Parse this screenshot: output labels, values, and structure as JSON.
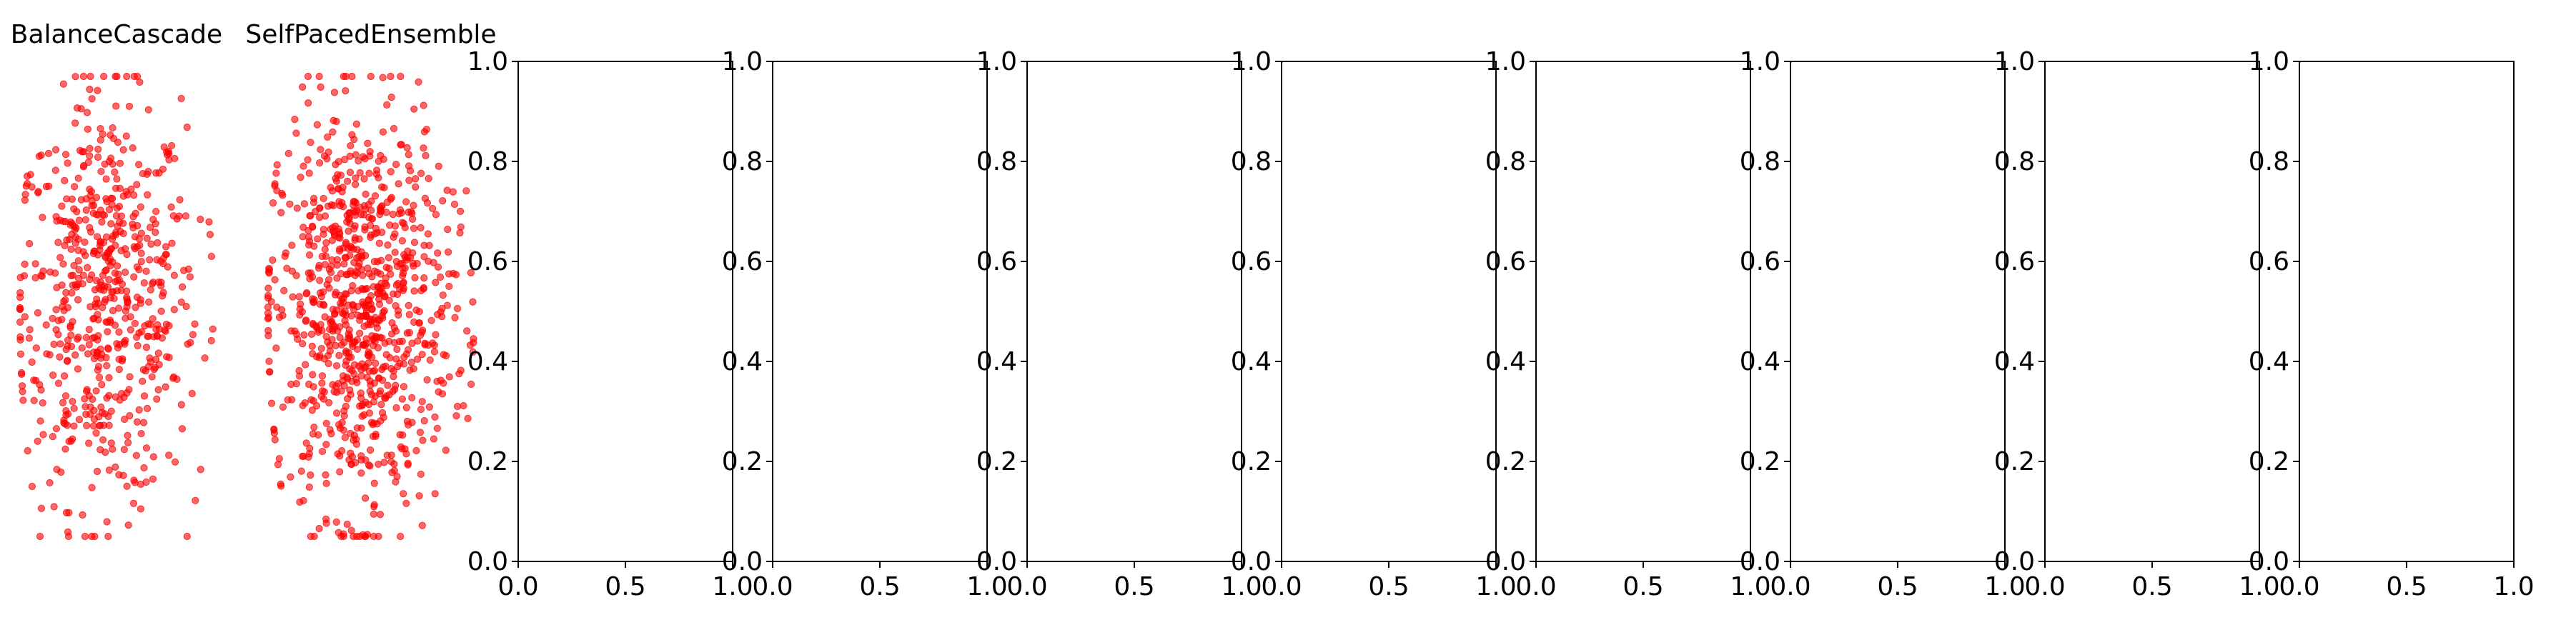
{
  "figure": {
    "background": "#ffffff",
    "point_color": "#ff0000"
  },
  "chart_data": [
    {
      "type": "scatter",
      "title": "BalanceCascade",
      "axes_visible": false,
      "grid": false,
      "color": "#ff0000",
      "cluster": {
        "count": 620,
        "x_range": [
          0.05,
          0.95
        ],
        "y_range": [
          0.05,
          0.97
        ],
        "center_x": 0.45,
        "center_y": 0.52
      }
    },
    {
      "type": "scatter",
      "title": "SelfPacedEnsemble",
      "axes_visible": false,
      "grid": false,
      "color": "#ff0000",
      "cluster": {
        "count": 900,
        "x_range": [
          0.02,
          0.98
        ],
        "y_range": [
          0.05,
          0.97
        ],
        "center_x": 0.45,
        "center_y": 0.5
      }
    },
    {
      "type": "scatter",
      "title": "",
      "xlim": [
        0.0,
        1.0
      ],
      "ylim": [
        0.0,
        1.0
      ],
      "xticks": [
        "0.0",
        "0.5",
        "1.0"
      ],
      "yticks": [
        "0.0",
        "0.2",
        "0.4",
        "0.6",
        "0.8",
        "1.0"
      ],
      "grid": false
    },
    {
      "type": "scatter",
      "title": "",
      "xlim": [
        0.0,
        1.0
      ],
      "ylim": [
        0.0,
        1.0
      ],
      "xticks": [
        "0.0",
        "0.5",
        "1.0"
      ],
      "yticks": [
        "0.0",
        "0.2",
        "0.4",
        "0.6",
        "0.8",
        "1.0"
      ],
      "grid": false
    },
    {
      "type": "scatter",
      "title": "",
      "xlim": [
        0.0,
        1.0
      ],
      "ylim": [
        0.0,
        1.0
      ],
      "xticks": [
        "0.0",
        "0.5",
        "1.0"
      ],
      "yticks": [
        "0.0",
        "0.2",
        "0.4",
        "0.6",
        "0.8",
        "1.0"
      ],
      "grid": false
    },
    {
      "type": "scatter",
      "title": "",
      "xlim": [
        0.0,
        1.0
      ],
      "ylim": [
        0.0,
        1.0
      ],
      "xticks": [
        "0.0",
        "0.5",
        "1.0"
      ],
      "yticks": [
        "0.0",
        "0.2",
        "0.4",
        "0.6",
        "0.8",
        "1.0"
      ],
      "grid": false
    },
    {
      "type": "scatter",
      "title": "",
      "xlim": [
        0.0,
        1.0
      ],
      "ylim": [
        0.0,
        1.0
      ],
      "xticks": [
        "0.0",
        "0.5",
        "1.0"
      ],
      "yticks": [
        "0.0",
        "0.2",
        "0.4",
        "0.6",
        "0.8",
        "1.0"
      ],
      "grid": false
    },
    {
      "type": "scatter",
      "title": "",
      "xlim": [
        0.0,
        1.0
      ],
      "ylim": [
        0.0,
        1.0
      ],
      "xticks": [
        "0.0",
        "0.5",
        "1.0"
      ],
      "yticks": [
        "0.0",
        "0.2",
        "0.4",
        "0.6",
        "0.8",
        "1.0"
      ],
      "grid": false
    },
    {
      "type": "scatter",
      "title": "",
      "xlim": [
        0.0,
        1.0
      ],
      "ylim": [
        0.0,
        1.0
      ],
      "xticks": [
        "0.0",
        "0.5",
        "1.0"
      ],
      "yticks": [
        "0.0",
        "0.2",
        "0.4",
        "0.6",
        "0.8",
        "1.0"
      ],
      "grid": false
    },
    {
      "type": "scatter",
      "title": "",
      "xlim": [
        0.0,
        1.0
      ],
      "ylim": [
        0.0,
        1.0
      ],
      "xticks": [
        "0.0",
        "0.5",
        "1.0"
      ],
      "yticks": [
        "0.0",
        "0.2",
        "0.4",
        "0.6",
        "0.8",
        "1.0"
      ],
      "grid": false
    }
  ]
}
